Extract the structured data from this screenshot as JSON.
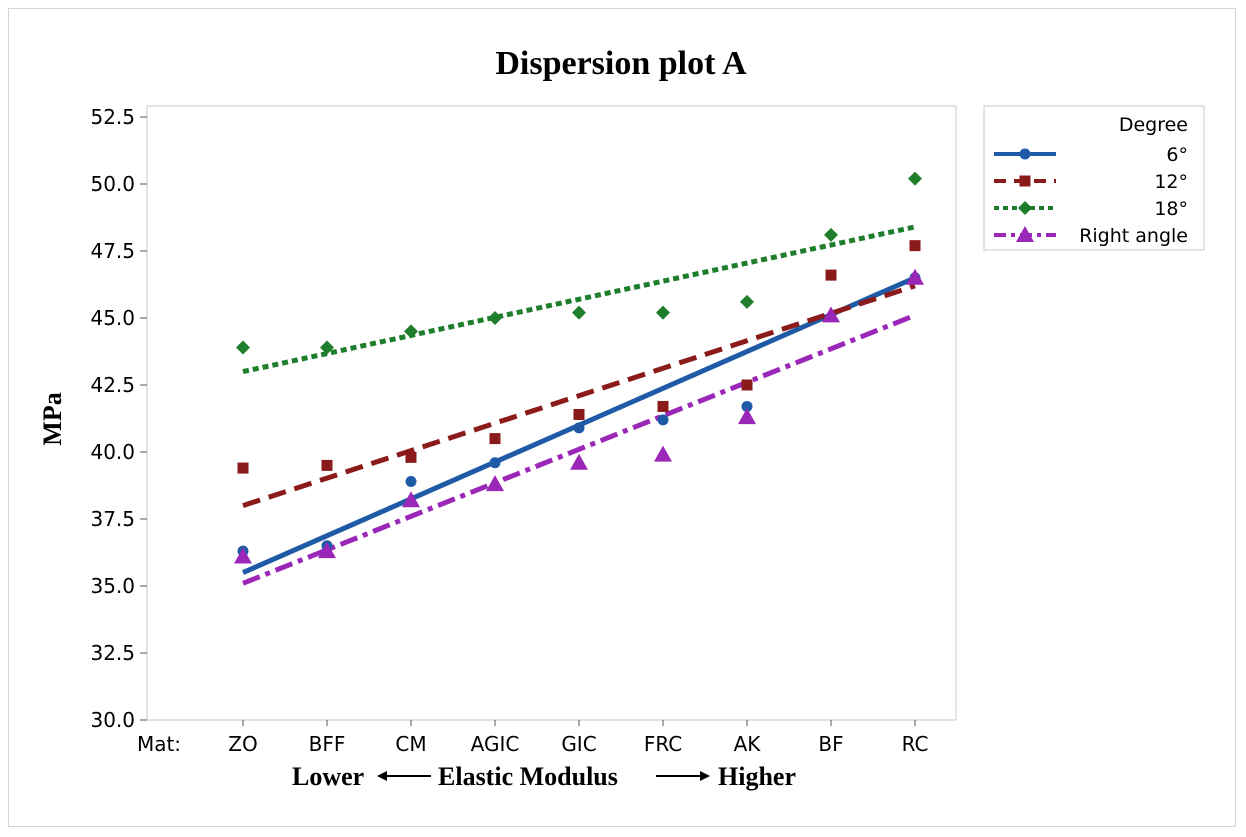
{
  "chart_data": {
    "type": "scatter",
    "title": "Dispersion plot A",
    "ylabel": "MPa",
    "xlabel_parts": {
      "lower": "Lower",
      "middle": "Elastic Modulus",
      "higher": "Higher"
    },
    "x_axis_prefix": "Mat:",
    "categories": [
      "ZO",
      "BFF",
      "CM",
      "AGIC",
      "GIC",
      "FRC",
      "AK",
      "BF",
      "RC"
    ],
    "ylim": [
      30.0,
      52.5
    ],
    "yticks": [
      "30.0",
      "32.5",
      "35.0",
      "37.5",
      "40.0",
      "42.5",
      "45.0",
      "47.5",
      "50.0",
      "52.5"
    ],
    "grid": false,
    "legend": {
      "title": "Degree",
      "placement": "right"
    },
    "series": [
      {
        "name": "6°",
        "color": "#1f5aa6",
        "marker": "circle",
        "line": "solid",
        "values": [
          36.3,
          36.5,
          38.9,
          39.6,
          40.9,
          41.2,
          41.7,
          46.6,
          46.5
        ],
        "fit": [
          35.5,
          46.5
        ]
      },
      {
        "name": "12°",
        "color": "#8b1a1a",
        "marker": "square",
        "line": "dashed",
        "values": [
          39.4,
          39.5,
          39.8,
          40.5,
          41.4,
          41.7,
          42.5,
          46.6,
          47.7
        ],
        "fit": [
          38.0,
          46.2
        ]
      },
      {
        "name": "18°",
        "color": "#1e7e2b",
        "marker": "diamond",
        "line": "dotted",
        "values": [
          43.9,
          43.9,
          44.5,
          45.0,
          45.2,
          45.2,
          45.6,
          48.1,
          50.2
        ],
        "fit": [
          43.0,
          48.4
        ]
      },
      {
        "name": "Right angle",
        "color": "#9b27b8",
        "marker": "triangle",
        "line": "dashdot",
        "values": [
          36.1,
          36.3,
          38.2,
          38.8,
          39.6,
          39.9,
          41.3,
          45.1,
          46.5
        ],
        "fit": [
          35.1,
          45.1
        ]
      }
    ]
  }
}
